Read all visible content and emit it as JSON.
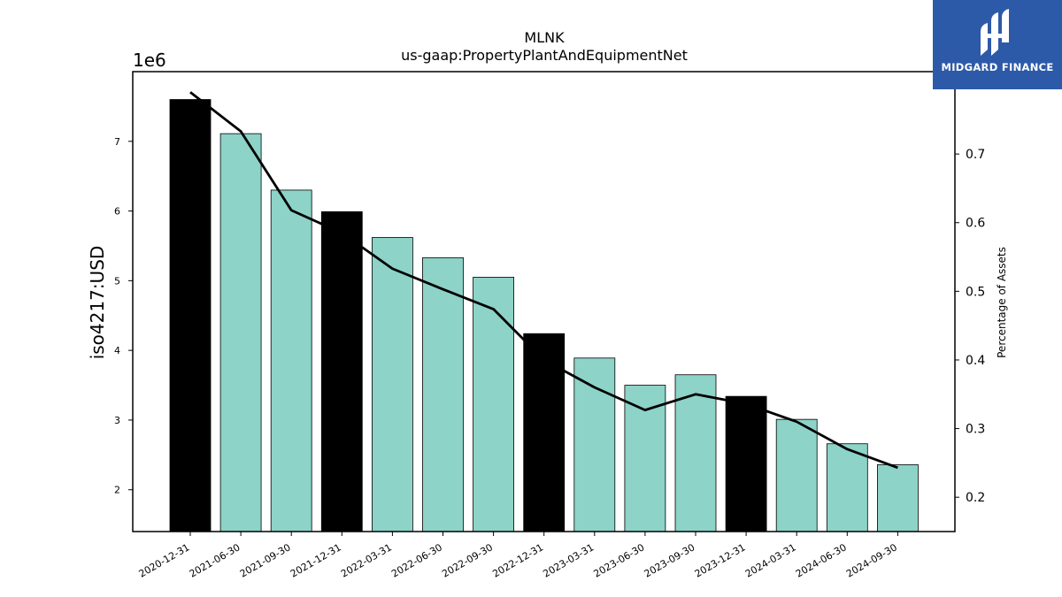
{
  "chart_data": {
    "type": "bar",
    "title": "MLNK",
    "subtitle": "us-gaap:PropertyPlantAndEquipmentNet",
    "ylabel": "iso4217:USD",
    "y2label": "Percentage of Assets",
    "offset_label": "1e6",
    "categories": [
      "2020-12-31",
      "2021-06-30",
      "2021-09-30",
      "2021-12-31",
      "2022-03-31",
      "2022-06-30",
      "2022-09-30",
      "2022-12-31",
      "2023-03-31",
      "2023-06-30",
      "2023-09-30",
      "2023-12-31",
      "2024-03-31",
      "2024-06-30",
      "2024-09-30"
    ],
    "values": [
      7.6,
      7.11,
      6.3,
      5.99,
      5.62,
      5.33,
      5.05,
      4.24,
      3.89,
      3.5,
      3.65,
      3.34,
      3.01,
      2.66,
      2.36
    ],
    "bar_kind": [
      "annual",
      "quarter",
      "quarter",
      "annual",
      "quarter",
      "quarter",
      "quarter",
      "annual",
      "quarter",
      "quarter",
      "quarter",
      "annual",
      "quarter",
      "quarter",
      "quarter"
    ],
    "line_series": {
      "axis": "right",
      "values": [
        0.79,
        0.733,
        0.618,
        0.585,
        0.533,
        0.503,
        0.474,
        0.4,
        0.36,
        0.327,
        0.35,
        0.336,
        0.31,
        0.27,
        0.243
      ]
    },
    "ylim": [
      1.4,
      8.0
    ],
    "y2lim": [
      0.15,
      0.82
    ],
    "yticks": [
      2,
      3,
      4,
      5,
      6,
      7
    ],
    "y2ticks": [
      0.2,
      0.3,
      0.4,
      0.5,
      0.6,
      0.7
    ],
    "colors": {
      "annual": "#000000",
      "quarter": "#8dd3c7",
      "line": "#000000"
    },
    "grid": false,
    "legend": "none"
  },
  "logo": {
    "text": "MIDGARD FINANCE",
    "icon": "midgard-logo-icon",
    "color": "#2d5aa8"
  }
}
